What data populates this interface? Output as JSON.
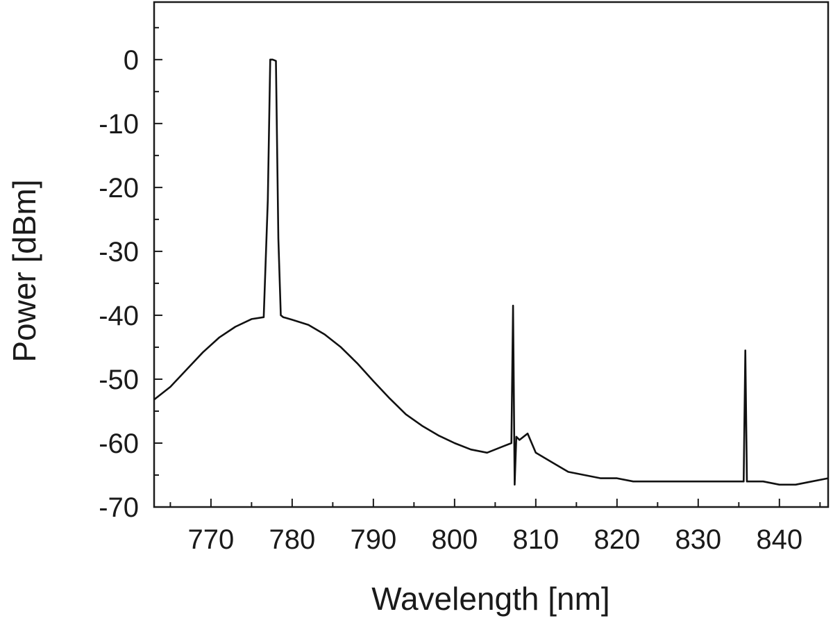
{
  "chart_data": {
    "type": "line",
    "title": "",
    "xlabel": "Wavelength [nm]",
    "ylabel": "Power [dBm]",
    "xlim": [
      763,
      846
    ],
    "ylim": [
      -70,
      9
    ],
    "x_ticks": [
      770,
      780,
      790,
      800,
      810,
      820,
      830,
      840
    ],
    "y_ticks": [
      0,
      -10,
      -20,
      -30,
      -40,
      -50,
      -60,
      -70
    ],
    "grid": false,
    "legend": "none",
    "line_color": "#111111",
    "series": [
      {
        "x": [
          763,
          765,
          767,
          769,
          771,
          773,
          775,
          776.5,
          777.0,
          777.3,
          777.6,
          778.0,
          778.3,
          778.6,
          778.9,
          779.2,
          780,
          782,
          784,
          786,
          788,
          790,
          792,
          794,
          796,
          798,
          800,
          802,
          804,
          806,
          807.0,
          807.2,
          807.4,
          807.6,
          808,
          809,
          810,
          812,
          814,
          816,
          818,
          820,
          822,
          824,
          826,
          828,
          830,
          832,
          834,
          835.6,
          835.8,
          836.0,
          838,
          840,
          842,
          844,
          846
        ],
        "y": [
          -53.2,
          -51.2,
          -48.5,
          -45.8,
          -43.5,
          -41.8,
          -40.6,
          -40.3,
          -22,
          0,
          0,
          -0.2,
          -28,
          -40,
          -40.3,
          -40.4,
          -40.7,
          -41.5,
          -43.0,
          -45.0,
          -47.5,
          -50.3,
          -53.0,
          -55.5,
          -57.3,
          -58.8,
          -60.0,
          -61.0,
          -61.5,
          -60.5,
          -60.0,
          -38.5,
          -66.5,
          -59.0,
          -59.5,
          -58.5,
          -61.5,
          -63.0,
          -64.5,
          -65.0,
          -65.5,
          -65.5,
          -66.0,
          -66.0,
          -66.0,
          -66.0,
          -66.0,
          -66.0,
          -66.0,
          -66.0,
          -45.5,
          -66.0,
          -66.0,
          -66.5,
          -66.5,
          -66.0,
          -65.5
        ]
      }
    ]
  }
}
